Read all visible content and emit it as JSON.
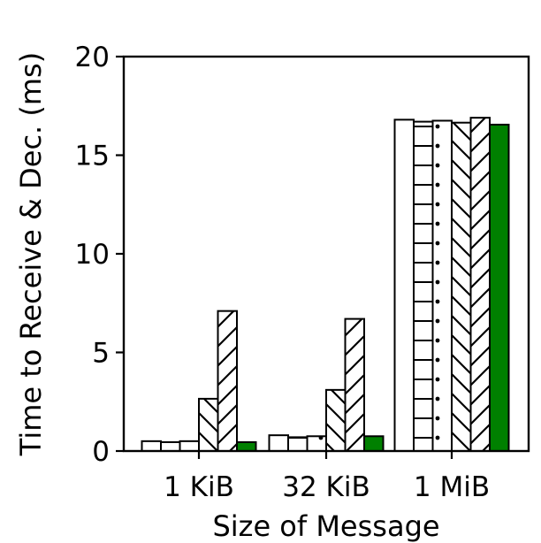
{
  "chart_data": {
    "type": "bar",
    "xlabel": "Size of Message",
    "ylabel": "Time to Receive & Dec. (ms)",
    "ylim": [
      0,
      20
    ],
    "yticks": [
      0,
      5,
      10,
      15,
      20
    ],
    "grid": false,
    "categories": [
      "1 KiB",
      "32 KiB",
      "1 MiB"
    ],
    "series": [
      {
        "values": [
          0.5,
          0.8,
          16.8
        ],
        "color": "#ffffff",
        "hatch": "none"
      },
      {
        "values": [
          0.45,
          0.7,
          16.7
        ],
        "color": "#ffffff",
        "hatch": "horizontal"
      },
      {
        "values": [
          0.5,
          0.75,
          16.75
        ],
        "color": "#ffffff",
        "hatch": "dots"
      },
      {
        "values": [
          2.65,
          3.1,
          16.65
        ],
        "color": "#ffffff",
        "hatch": "backslash"
      },
      {
        "values": [
          7.1,
          6.7,
          16.9
        ],
        "color": "#ffffff",
        "hatch": "slash"
      },
      {
        "values": [
          0.45,
          0.75,
          16.55
        ],
        "color": "#008000",
        "hatch": "none"
      }
    ]
  }
}
